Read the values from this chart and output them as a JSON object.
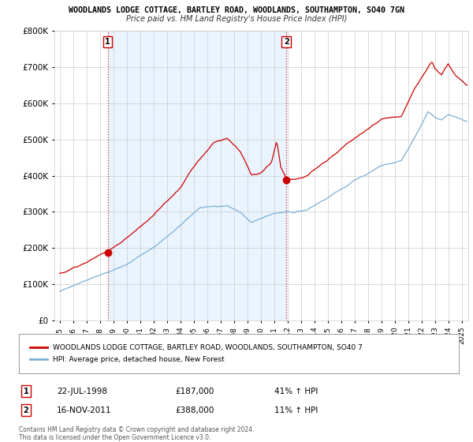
{
  "title1": "WOODLANDS LODGE COTTAGE, BARTLEY ROAD, WOODLANDS, SOUTHAMPTON, SO40 7GN",
  "title2": "Price paid vs. HM Land Registry's House Price Index (HPI)",
  "sale1_date": "22-JUL-1998",
  "sale1_price": 187000,
  "sale1_label": "41% ↑ HPI",
  "sale2_date": "16-NOV-2011",
  "sale2_price": 388000,
  "sale2_label": "11% ↑ HPI",
  "legend1": "WOODLANDS LODGE COTTAGE, BARTLEY ROAD, WOODLANDS, SOUTHAMPTON, SO40 7",
  "legend2": "HPI: Average price, detached house, New Forest",
  "footer1": "Contains HM Land Registry data © Crown copyright and database right 2024.",
  "footer2": "This data is licensed under the Open Government Licence v3.0.",
  "red_color": "#cc0000",
  "blue_color": "#7bafd4",
  "shade_color": "#ddeeff",
  "ylim": [
    0,
    800000
  ],
  "yticks": [
    0,
    100000,
    200000,
    300000,
    400000,
    500000,
    600000,
    700000,
    800000
  ],
  "sale1_t": 1998.583,
  "sale2_t": 2011.917,
  "sale1_price_actual": 187000,
  "sale2_price_actual": 388000
}
